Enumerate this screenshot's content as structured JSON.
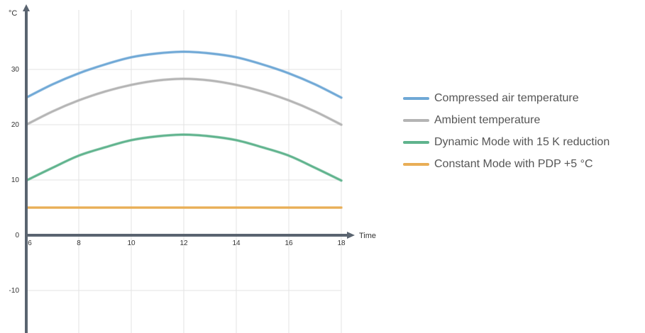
{
  "chart_data": {
    "type": "line",
    "x": [
      6,
      7,
      8,
      9,
      10,
      11,
      12,
      13,
      14,
      15,
      16,
      17,
      18
    ],
    "xlim": [
      6,
      18
    ],
    "ylim": [
      -15,
      40
    ],
    "xticks": [
      "6",
      "8",
      "10",
      "12",
      "14",
      "16",
      "18"
    ],
    "yticks": [
      "-10",
      "0",
      "10",
      "20",
      "30"
    ],
    "xlabel": "Time",
    "ylabel": "°C",
    "grid": true,
    "legend_position": "right",
    "series": [
      {
        "name": "Compressed air temperature",
        "color": "#6fa8d6",
        "values": [
          24.9,
          27.3,
          29.3,
          30.9,
          32.2,
          32.9,
          33.2,
          32.9,
          32.2,
          30.9,
          29.3,
          27.3,
          24.9
        ]
      },
      {
        "name": "Ambient temperature",
        "color": "#b4b4b4",
        "values": [
          20.0,
          22.4,
          24.4,
          26.0,
          27.2,
          28.0,
          28.3,
          28.0,
          27.2,
          26.0,
          24.4,
          22.4,
          20.0
        ]
      },
      {
        "name": "Dynamic Mode with 15 K reduction",
        "color": "#5fb38d",
        "values": [
          9.9,
          12.2,
          14.4,
          15.9,
          17.2,
          17.9,
          18.2,
          17.9,
          17.2,
          15.9,
          14.4,
          12.2,
          9.9
        ]
      },
      {
        "name": "Constant Mode with PDP +5 °C",
        "color": "#e9ae56",
        "values": [
          5,
          5,
          5,
          5,
          5,
          5,
          5,
          5,
          5,
          5,
          5,
          5,
          5
        ]
      }
    ]
  }
}
